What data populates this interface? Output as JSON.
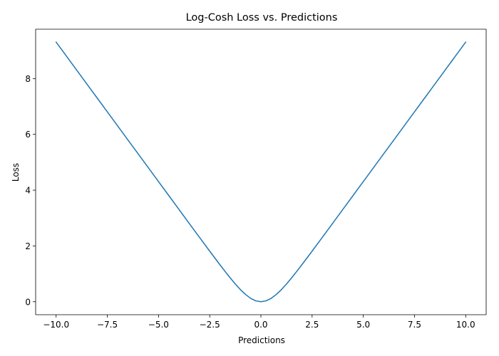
{
  "chart_data": {
    "type": "line",
    "title": "Log-Cosh Loss vs. Predictions",
    "xlabel": "Predictions",
    "ylabel": "Loss",
    "xlim": [
      -11.0,
      11.0
    ],
    "ylim": [
      -0.465,
      9.77
    ],
    "x_ticks": [
      -10.0,
      -7.5,
      -5.0,
      -2.5,
      0.0,
      2.5,
      5.0,
      7.5,
      10.0
    ],
    "x_tick_labels": [
      "−10.0",
      "−7.5",
      "−5.0",
      "−2.5",
      "0.0",
      "2.5",
      "5.0",
      "7.5",
      "10.0"
    ],
    "y_ticks": [
      0,
      2,
      4,
      6,
      8
    ],
    "y_tick_labels": [
      "0",
      "2",
      "4",
      "6",
      "8"
    ],
    "grid": false,
    "legend": "none",
    "series": [
      {
        "color": "#1f77b4",
        "x": [
          -10.0,
          -9.5,
          -9.0,
          -8.5,
          -8.0,
          -7.5,
          -7.0,
          -6.5,
          -6.0,
          -5.5,
          -5.0,
          -4.5,
          -4.0,
          -3.5,
          -3.0,
          -2.5,
          -2.0,
          -1.75,
          -1.5,
          -1.25,
          -1.0,
          -0.75,
          -0.5,
          -0.25,
          0.0,
          0.25,
          0.5,
          0.75,
          1.0,
          1.25,
          1.5,
          1.75,
          2.0,
          2.5,
          3.0,
          3.5,
          4.0,
          4.5,
          5.0,
          5.5,
          6.0,
          6.5,
          7.0,
          7.5,
          8.0,
          8.5,
          9.0,
          9.5,
          10.0
        ],
        "values": [
          9.307,
          8.807,
          8.307,
          7.807,
          7.307,
          6.807,
          6.307,
          5.807,
          5.307,
          4.807,
          4.307,
          3.807,
          3.307,
          2.808,
          2.31,
          1.813,
          1.325,
          1.087,
          0.856,
          0.635,
          0.434,
          0.261,
          0.12,
          0.031,
          0.0,
          0.031,
          0.12,
          0.261,
          0.434,
          0.635,
          0.856,
          1.087,
          1.325,
          1.813,
          2.31,
          2.808,
          3.307,
          3.807,
          4.307,
          4.807,
          5.307,
          5.807,
          6.307,
          6.807,
          7.307,
          7.807,
          8.307,
          8.807,
          9.307
        ]
      }
    ]
  }
}
